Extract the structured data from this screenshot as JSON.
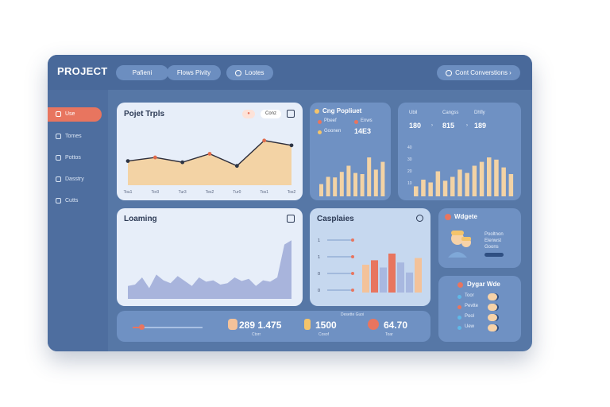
{
  "app": {
    "logo": "PROJECT",
    "nav_pills": [
      "Pafieni",
      "Flows Pivity",
      "Lootes"
    ],
    "top_right_button": "Cont Converstions"
  },
  "sidebar": {
    "items": [
      {
        "label": "Use",
        "icon": "home-icon",
        "active": true
      },
      {
        "label": "Tomes",
        "icon": "leaf-icon",
        "active": false
      },
      {
        "label": "Pottos",
        "icon": "folder-icon",
        "active": false
      },
      {
        "label": "Dasstry",
        "icon": "shield-icon",
        "active": false
      },
      {
        "label": "Cutts",
        "icon": "pen-icon",
        "active": false
      }
    ]
  },
  "project_trends": {
    "title": "Pojet Trpls",
    "badge_text": "Conz",
    "x_labels": [
      "Tou1",
      "Tor3",
      "Tur3",
      "Tes2",
      "Tur0",
      "Tos1",
      "Tos2"
    ],
    "values": [
      40,
      46,
      38,
      52,
      32,
      74,
      66
    ],
    "colors": {
      "area": "#f3d3a5",
      "line": "#2d2d3a",
      "marker_dark": "#2d3545",
      "marker_red": "#e06b4c"
    }
  },
  "populations": {
    "title": "Cng Popliuet",
    "legend": [
      {
        "label": "Pbeef",
        "color": "#e8755f"
      },
      {
        "label": "Enws",
        "color": "#e8755f"
      },
      {
        "label": "Goonen",
        "color": "#f4c46b"
      }
    ],
    "value": "14E3",
    "bars": [
      22,
      35,
      34,
      44,
      55,
      42,
      40,
      70,
      48,
      62
    ],
    "bar_color": "#f3d3a5"
  },
  "counts": {
    "headers": [
      "Ubil",
      "Cangss",
      "Dhfly"
    ],
    "values": [
      "180",
      "815",
      "189"
    ],
    "axis_ticks": [
      "40",
      "30",
      "20",
      "10"
    ],
    "bars": [
      18,
      30,
      25,
      45,
      28,
      35,
      48,
      42,
      55,
      62,
      70,
      66,
      52,
      40
    ],
    "bar_color": "#f3d3a5"
  },
  "loaning": {
    "title": "Loaming",
    "values": [
      18,
      20,
      30,
      15,
      34,
      26,
      22,
      32,
      25,
      18,
      30,
      24,
      26,
      20,
      22,
      30,
      25,
      28,
      18,
      26,
      24,
      30,
      76,
      82
    ],
    "color": "#a8b4dc"
  },
  "campaigns": {
    "title": "Casplaies",
    "rows": [
      "1",
      "1",
      "0",
      "0"
    ],
    "bars": [
      {
        "value": 50,
        "color": "#f3c29a"
      },
      {
        "value": 58,
        "color": "#e8755f"
      },
      {
        "value": 45,
        "color": "#a8b8e0"
      },
      {
        "value": 70,
        "color": "#e8755f"
      },
      {
        "value": 54,
        "color": "#a8b8e0"
      },
      {
        "value": 36,
        "color": "#a8b8e0"
      },
      {
        "value": 62,
        "color": "#f3c29a"
      }
    ]
  },
  "widgets": {
    "title": "Wdgete",
    "lines": [
      "Pooltnon",
      "Elenwst",
      "Goons"
    ],
    "button": ""
  },
  "team": {
    "title": "Dygar Wde",
    "rows": [
      {
        "label": "Toor",
        "color": "#5fb8e8"
      },
      {
        "label": "Pevtte",
        "color": "#e8755f"
      },
      {
        "label": "Pool",
        "color": "#5fb8e8"
      },
      {
        "label": "Uew",
        "color": "#5fb8e8"
      }
    ]
  },
  "stats": {
    "progress_value": 0.12,
    "items": [
      {
        "value": "289 1.475",
        "label": "Ctorr",
        "icon": "fist-icon"
      },
      {
        "value": "1500",
        "label": "Cosof",
        "icon": "hand-icon"
      },
      {
        "value": "64.70",
        "label": "Toar",
        "icon": "face-icon"
      }
    ],
    "header_label": "Desette Guoi"
  }
}
